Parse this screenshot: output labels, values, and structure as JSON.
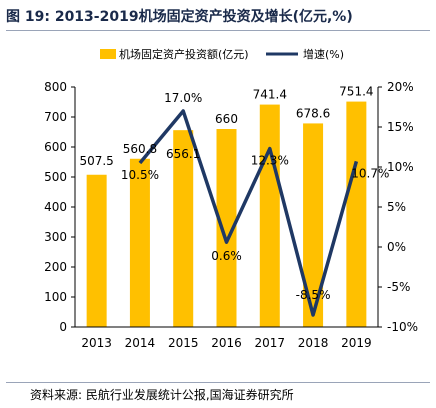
{
  "title": "图 19:  2013-2019机场固定资产投资及增长(亿元,%)",
  "source": "资料来源:  民航行业发展统计公报,国海证券研究所",
  "colors": {
    "bar": "#FFC000",
    "line": "#1F3864"
  },
  "chart_data": {
    "type": "bar+line",
    "categories": [
      "2013",
      "2014",
      "2015",
      "2016",
      "2017",
      "2018",
      "2019"
    ],
    "series": [
      {
        "name": "机场固定资产投资额(亿元)",
        "type": "bar",
        "axis": "left",
        "values": [
          507.5,
          560.8,
          656.1,
          660,
          741.4,
          678.6,
          751.4
        ],
        "labels": [
          "507.5",
          "560.8",
          "656.1",
          "660",
          "741.4",
          "678.6",
          "751.4"
        ]
      },
      {
        "name": "增速(%)",
        "type": "line",
        "axis": "right",
        "values": [
          null,
          10.5,
          17.0,
          0.6,
          12.3,
          -8.5,
          10.7
        ],
        "labels": [
          "",
          "10.5%",
          "17.0%",
          "0.6%",
          "12.3%",
          "-8.5%",
          "10.7%"
        ]
      }
    ],
    "y_left": {
      "min": 0,
      "max": 800,
      "ticks": [
        "0",
        "100",
        "200",
        "300",
        "400",
        "500",
        "600",
        "700",
        "800"
      ]
    },
    "y_right": {
      "min": -10,
      "max": 20,
      "ticks": [
        "-10%",
        "-5%",
        "0%",
        "5%",
        "10%",
        "15%",
        "20%"
      ]
    },
    "legend_position": "top"
  }
}
